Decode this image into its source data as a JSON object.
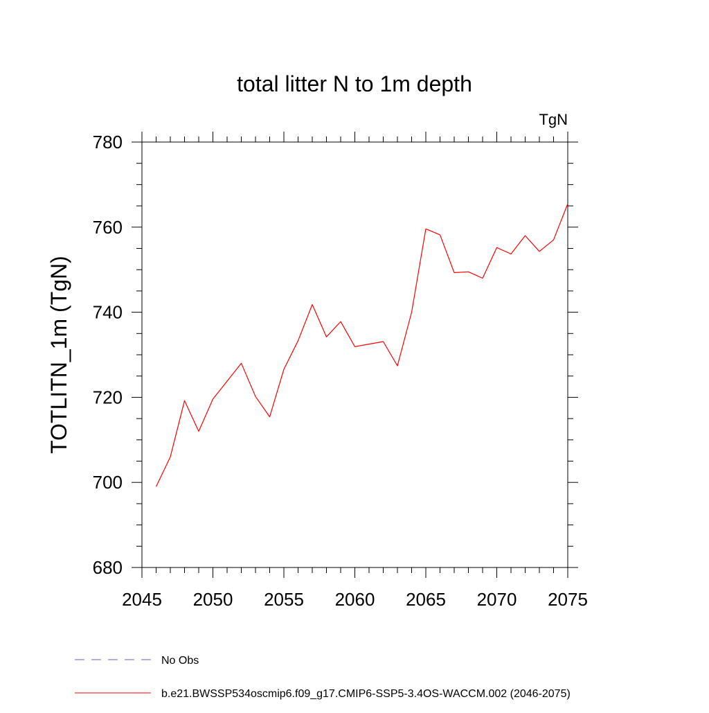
{
  "chart_data": {
    "type": "line",
    "title": "total litter N to 1m depth",
    "units_label": "TgN",
    "xlabel": "",
    "ylabel": "TOTLITN_1m  (TgN)",
    "xlim": [
      2045,
      2075
    ],
    "ylim": [
      680,
      780
    ],
    "x_major_ticks": [
      2045,
      2050,
      2055,
      2060,
      2065,
      2070,
      2075
    ],
    "y_major_ticks": [
      680,
      700,
      720,
      740,
      760,
      780
    ],
    "y_minor_step": 5,
    "x_minor_step": 1,
    "grid": false,
    "legend_position": "bottom",
    "series": [
      {
        "name": "b.e21.BWSSP534oscmip6.f09_g17.CMIP6-SSP5-3.4OS-WACCM.002 (2046-2075)",
        "color": "#ff0000",
        "style": "solid",
        "x": [
          2046,
          2047,
          2048,
          2049,
          2050,
          2051,
          2052,
          2053,
          2054,
          2055,
          2056,
          2057,
          2058,
          2059,
          2060,
          2061,
          2062,
          2063,
          2064,
          2065,
          2066,
          2067,
          2068,
          2069,
          2070,
          2071,
          2072,
          2073,
          2074,
          2075
        ],
        "values": [
          699,
          706,
          719.2,
          712,
          719.6,
          723.8,
          728,
          720.2,
          715.4,
          726.6,
          733.3,
          741.8,
          734.2,
          737.8,
          731.9,
          732.5,
          733.1,
          727.4,
          740,
          759.6,
          758.2,
          749.3,
          749.5,
          748,
          755.2,
          753.7,
          758,
          754.3,
          757,
          765.5
        ]
      }
    ],
    "legend": [
      {
        "label": "No Obs",
        "color": "#6a5acd",
        "style": "dashed"
      },
      {
        "label": "b.e21.BWSSP534oscmip6.f09_g17.CMIP6-SSP5-3.4OS-WACCM.002 (2046-2075)",
        "color": "#ff0000",
        "style": "solid"
      }
    ]
  }
}
